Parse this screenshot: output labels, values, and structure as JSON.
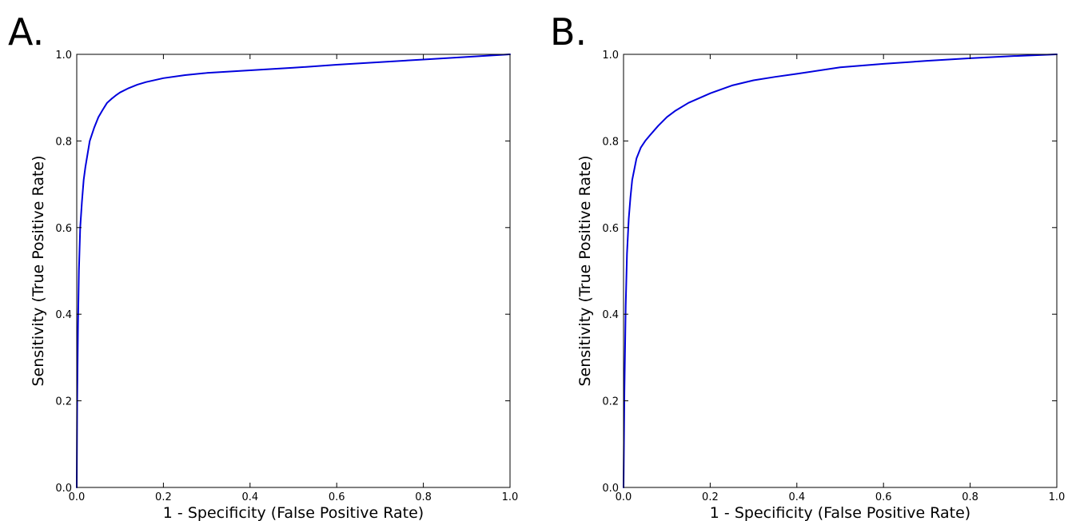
{
  "chart_data": [
    {
      "type": "line",
      "panel_label": "A.",
      "title": "",
      "xlabel": "1 - Specificity (False Positive Rate)",
      "ylabel": "Sensitivity (True Positive Rate)",
      "xlim": [
        0.0,
        1.0
      ],
      "ylim": [
        0.0,
        1.0
      ],
      "xticks": [
        0.0,
        0.2,
        0.4,
        0.6,
        0.8,
        1.0
      ],
      "yticks": [
        0.0,
        0.2,
        0.4,
        0.6,
        0.8,
        1.0
      ],
      "xtick_labels": [
        "0.0",
        "0.2",
        "0.4",
        "0.6",
        "0.8",
        "1.0"
      ],
      "ytick_labels": [
        "0.0",
        "0.2",
        "0.4",
        "0.6",
        "0.8",
        "1.0"
      ],
      "grid": false,
      "series": [
        {
          "color": "#0000dd",
          "x": [
            0.0,
            0.001,
            0.003,
            0.005,
            0.008,
            0.012,
            0.016,
            0.02,
            0.025,
            0.03,
            0.04,
            0.05,
            0.06,
            0.07,
            0.08,
            0.09,
            0.1,
            0.12,
            0.14,
            0.16,
            0.2,
            0.25,
            0.3,
            0.4,
            0.5,
            0.6,
            0.7,
            0.8,
            0.9,
            0.95,
            1.0
          ],
          "y": [
            0.0,
            0.2,
            0.38,
            0.5,
            0.6,
            0.66,
            0.71,
            0.74,
            0.77,
            0.8,
            0.83,
            0.855,
            0.872,
            0.888,
            0.897,
            0.905,
            0.912,
            0.922,
            0.93,
            0.936,
            0.945,
            0.952,
            0.957,
            0.963,
            0.969,
            0.976,
            0.982,
            0.988,
            0.994,
            0.997,
            1.0
          ]
        }
      ]
    },
    {
      "type": "line",
      "panel_label": "B.",
      "title": "",
      "xlabel": "1 - Specificity (False Positive Rate)",
      "ylabel": "Sensitivity (True Positive Rate)",
      "xlim": [
        0.0,
        1.0
      ],
      "ylim": [
        0.0,
        1.0
      ],
      "xticks": [
        0.0,
        0.2,
        0.4,
        0.6,
        0.8,
        1.0
      ],
      "yticks": [
        0.0,
        0.2,
        0.4,
        0.6,
        0.8,
        1.0
      ],
      "xtick_labels": [
        "0.0",
        "0.2",
        "0.4",
        "0.6",
        "0.8",
        "1.0"
      ],
      "ytick_labels": [
        "0.0",
        "0.2",
        "0.4",
        "0.6",
        "0.8",
        "1.0"
      ],
      "grid": false,
      "series": [
        {
          "color": "#0000dd",
          "x": [
            0.0,
            0.002,
            0.005,
            0.008,
            0.012,
            0.016,
            0.02,
            0.025,
            0.03,
            0.04,
            0.05,
            0.06,
            0.08,
            0.1,
            0.12,
            0.15,
            0.2,
            0.25,
            0.3,
            0.35,
            0.4,
            0.5,
            0.6,
            0.7,
            0.8,
            0.9,
            1.0
          ],
          "y": [
            0.0,
            0.22,
            0.42,
            0.54,
            0.62,
            0.67,
            0.71,
            0.735,
            0.76,
            0.785,
            0.8,
            0.812,
            0.835,
            0.855,
            0.87,
            0.888,
            0.91,
            0.928,
            0.94,
            0.948,
            0.955,
            0.97,
            0.978,
            0.985,
            0.991,
            0.996,
            1.0
          ]
        }
      ]
    }
  ]
}
